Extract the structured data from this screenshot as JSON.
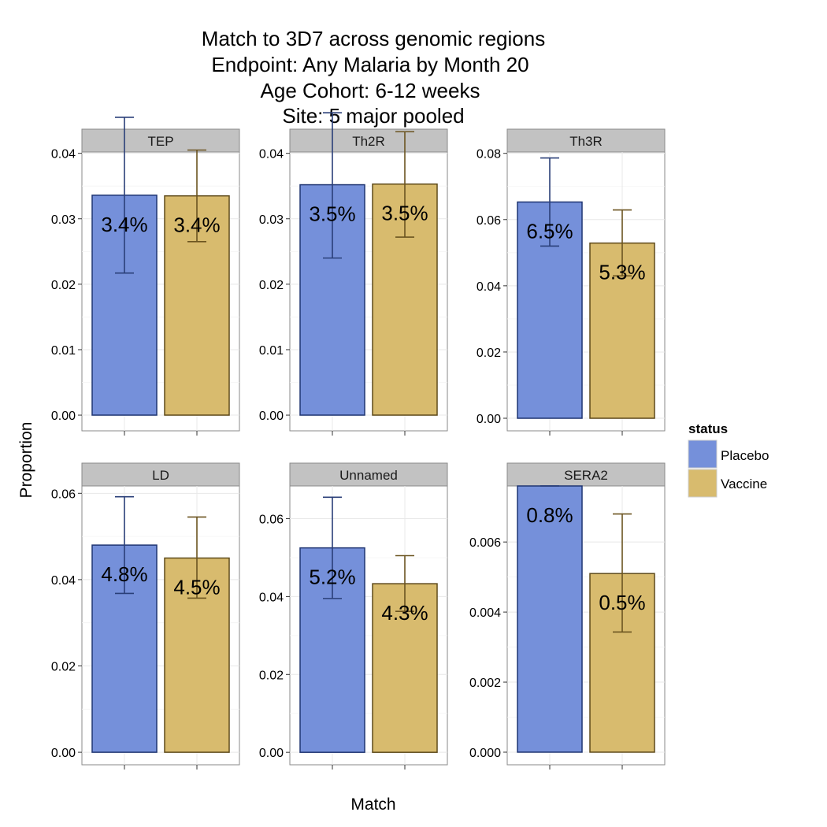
{
  "chart_data": {
    "type": "bar",
    "title_lines": [
      "Match to 3D7 across genomic regions",
      "Endpoint: Any Malaria by Month 20",
      "Age Cohort: 6-12 weeks",
      "Site: 5 major pooled"
    ],
    "xlabel": "Match",
    "ylabel": "Proportion",
    "legend": {
      "title": "status",
      "position": "right",
      "entries": [
        {
          "label": "Placebo",
          "fill": "#7590da",
          "stroke": "#1f3572"
        },
        {
          "label": "Vaccine",
          "fill": "#d8bb6e",
          "stroke": "#5e4a1a"
        }
      ]
    },
    "series_colors": {
      "Placebo": {
        "fill": "#7590da",
        "stroke": "#1f3572",
        "error": "#2a3f78"
      },
      "Vaccine": {
        "fill": "#d8bb6e",
        "stroke": "#5e4a1a",
        "error": "#6b5420"
      }
    },
    "grid": true,
    "panels": [
      {
        "name": "TEP",
        "ylim": [
          -0.0024,
          0.0402
        ],
        "yticks": [
          0.0,
          0.01,
          0.02,
          0.03,
          0.04
        ],
        "ytick_labels": [
          "0.00",
          "0.01",
          "0.02",
          "0.03",
          "0.04"
        ],
        "bars": [
          {
            "series": "Placebo",
            "value": 0.0336,
            "err_low": 0.0217,
            "err_high": 0.0455,
            "label": "3.4%"
          },
          {
            "series": "Vaccine",
            "value": 0.0335,
            "err_low": 0.0265,
            "err_high": 0.0405,
            "label": "3.4%"
          }
        ]
      },
      {
        "name": "Th2R",
        "ylim": [
          -0.0024,
          0.0402
        ],
        "yticks": [
          0.0,
          0.01,
          0.02,
          0.03,
          0.04
        ],
        "ytick_labels": [
          "0.00",
          "0.01",
          "0.02",
          "0.03",
          "0.04"
        ],
        "bars": [
          {
            "series": "Placebo",
            "value": 0.0352,
            "err_low": 0.024,
            "err_high": 0.0462,
            "label": "3.5%"
          },
          {
            "series": "Vaccine",
            "value": 0.0353,
            "err_low": 0.0272,
            "err_high": 0.0433,
            "label": "3.5%"
          }
        ]
      },
      {
        "name": "Th3R",
        "ylim": [
          -0.0038,
          0.0804
        ],
        "yticks": [
          0.0,
          0.02,
          0.04,
          0.06,
          0.08
        ],
        "ytick_labels": [
          "0.00",
          "0.02",
          "0.04",
          "0.06",
          "0.08"
        ],
        "bars": [
          {
            "series": "Placebo",
            "value": 0.0653,
            "err_low": 0.052,
            "err_high": 0.0786,
            "label": "6.5%"
          },
          {
            "series": "Vaccine",
            "value": 0.0529,
            "err_low": 0.043,
            "err_high": 0.0629,
            "label": "5.3%"
          }
        ]
      },
      {
        "name": "LD",
        "ylim": [
          -0.0029,
          0.0617
        ],
        "yticks": [
          0.0,
          0.02,
          0.04,
          0.06
        ],
        "ytick_labels": [
          "0.00",
          "0.02",
          "0.04",
          "0.06"
        ],
        "bars": [
          {
            "series": "Placebo",
            "value": 0.048,
            "err_low": 0.0368,
            "err_high": 0.0592,
            "label": "4.8%"
          },
          {
            "series": "Vaccine",
            "value": 0.045,
            "err_low": 0.0357,
            "err_high": 0.0545,
            "label": "4.5%"
          }
        ]
      },
      {
        "name": "Unnamed",
        "ylim": [
          -0.0032,
          0.0684
        ],
        "yticks": [
          0.0,
          0.02,
          0.04,
          0.06
        ],
        "ytick_labels": [
          "0.00",
          "0.02",
          "0.04",
          "0.06"
        ],
        "bars": [
          {
            "series": "Placebo",
            "value": 0.0525,
            "err_low": 0.0395,
            "err_high": 0.0655,
            "label": "5.2%"
          },
          {
            "series": "Vaccine",
            "value": 0.0433,
            "err_low": 0.0362,
            "err_high": 0.0505,
            "label": "4.3%"
          }
        ]
      },
      {
        "name": "SERA2",
        "ylim": [
          -0.00036,
          0.0076
        ],
        "yticks": [
          0.0,
          0.002,
          0.004,
          0.006
        ],
        "ytick_labels": [
          "0.000",
          "0.002",
          "0.004",
          "0.006"
        ],
        "bars": [
          {
            "series": "Placebo",
            "value": 0.0076,
            "err_low": 0.0076,
            "err_high": 0.0076,
            "label": "0.8%"
          },
          {
            "series": "Vaccine",
            "value": 0.0051,
            "err_low": 0.00343,
            "err_high": 0.0068,
            "label": "0.5%"
          }
        ]
      }
    ]
  }
}
